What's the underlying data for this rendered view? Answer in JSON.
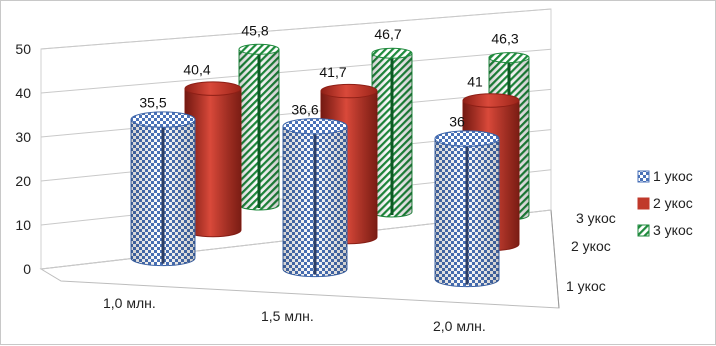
{
  "chart_data": {
    "type": "bar",
    "subtype": "3d-cylinder",
    "title": "",
    "xlabel": "",
    "ylabel": "",
    "ylim": [
      0,
      50
    ],
    "yticks": [
      "0",
      "10",
      "20",
      "30",
      "40",
      "50"
    ],
    "grid": true,
    "legend_position": "right",
    "categories": [
      "1,0 млн.",
      "1,5 млн.",
      "2,0 млн."
    ],
    "depth_labels": [
      "1 укос",
      "2 укос",
      "3 укос"
    ],
    "series": [
      {
        "name": "1 укос",
        "values": [
          35.5,
          36.6,
          36
        ],
        "labels": [
          "35,5",
          "36,6",
          "36"
        ],
        "color": "#4a72b8",
        "pattern": "checker"
      },
      {
        "name": "2 укос",
        "values": [
          40.4,
          41.7,
          41
        ],
        "labels": [
          "40,4",
          "41,7",
          "41"
        ],
        "color": "#c0392b",
        "pattern": "solid"
      },
      {
        "name": "3 укос",
        "values": [
          45.8,
          46.7,
          46.3
        ],
        "labels": [
          "45,8",
          "46,7",
          "46,3"
        ],
        "color": "#1e8a3c",
        "pattern": "diagonal"
      }
    ]
  }
}
